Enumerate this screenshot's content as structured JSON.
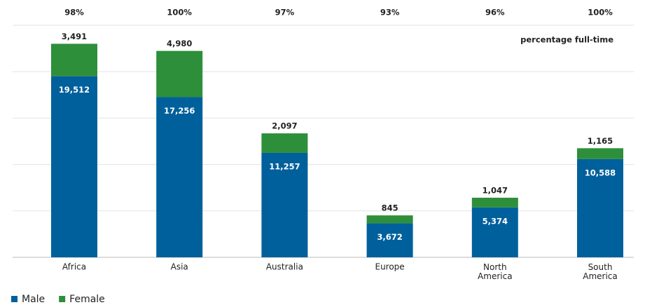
{
  "chart_data": {
    "type": "stacked_bar",
    "categories": [
      "Africa",
      "Asia",
      "Australia",
      "Europe",
      "North America",
      "South America"
    ],
    "series": [
      {
        "name": "Male",
        "color": "#00609c",
        "values": [
          19512,
          17256,
          11257,
          3672,
          5374,
          10588
        ],
        "value_labels": [
          "19,512",
          "17,256",
          "11,257",
          "3,672",
          "5,374",
          "10,588"
        ]
      },
      {
        "name": "Female",
        "color": "#2e8f3a",
        "values": [
          3491,
          4980,
          2097,
          845,
          1047,
          1165
        ],
        "value_labels": [
          "3,491",
          "4,980",
          "2,097",
          "845",
          "1,047",
          "1,165"
        ]
      }
    ],
    "annotation": "percentage full-time",
    "percent_labels": [
      "98%",
      "100%",
      "97%",
      "93%",
      "96%",
      "100%"
    ],
    "ylim": [
      0,
      25000
    ],
    "yticks": [
      0,
      5000,
      10000,
      15000,
      20000,
      25000
    ],
    "grid": true
  }
}
